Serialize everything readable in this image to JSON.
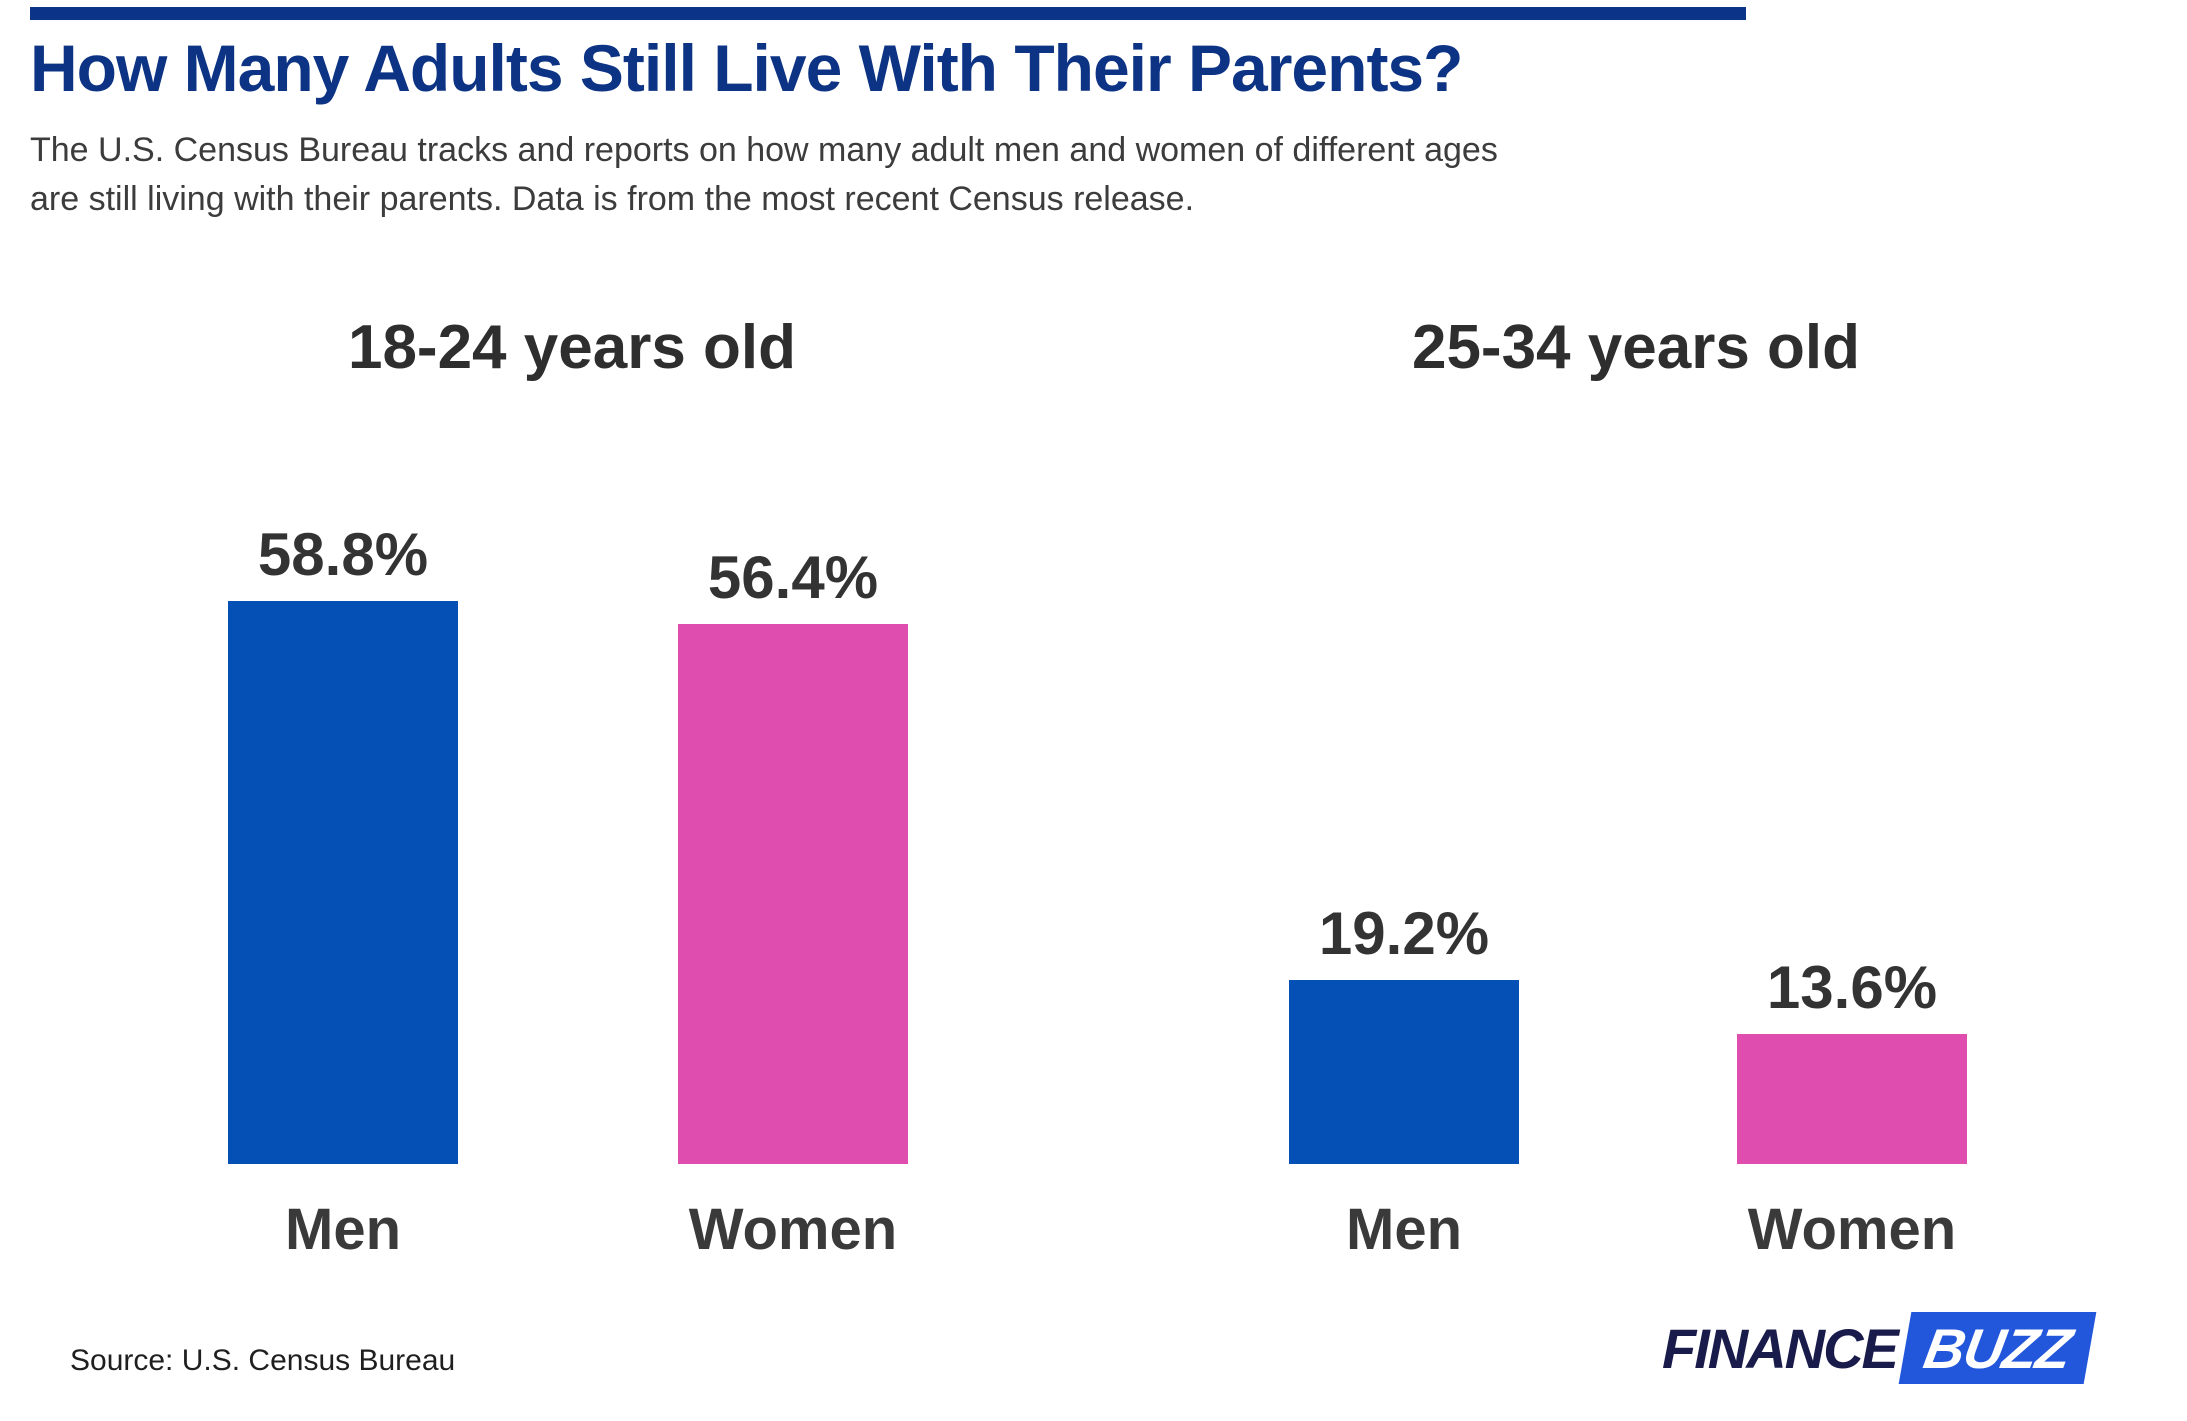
{
  "header": {
    "title": "How Many Adults Still Live With Their Parents?",
    "subtitle_line1": "The U.S. Census Bureau tracks and reports on how many adult men and women of different ages",
    "subtitle_line2": "are still living with their parents. Data is from the most recent Census release."
  },
  "theme": {
    "accent_bar": "#0b3488",
    "title_color": "#0d3384",
    "heading_text": "#2e2e2e",
    "value_text": "#333333",
    "subtitle_text": "#3c3c3c"
  },
  "chart_data": {
    "type": "grouped_bar",
    "unit": "%",
    "series": [
      "Men",
      "Women"
    ],
    "series_colors": {
      "men": "#0450b4",
      "women": "#df4daf"
    },
    "groups": [
      {
        "title": "18-24 years old",
        "categories": [
          "Men",
          "Women"
        ],
        "series_keys": [
          "men",
          "women"
        ],
        "values": [
          58.8,
          56.4
        ],
        "labels": [
          "58.8%",
          "56.4%"
        ]
      },
      {
        "title": "25-34 years old",
        "categories": [
          "Men",
          "Women"
        ],
        "series_keys": [
          "men",
          "women"
        ],
        "values": [
          19.2,
          13.6
        ],
        "labels": [
          "19.2%",
          "13.6%"
        ]
      }
    ],
    "value_label_position": "above-bar",
    "axes": "none",
    "grid": false,
    "legend": "none"
  },
  "footer": {
    "source": "Source: U.S. Census Bureau",
    "logo": {
      "part1": "FINANCE",
      "part2": "BUZZ",
      "part1_color": "#191b4a",
      "box_color": "#2257dc",
      "part2_color": "#ffffff"
    }
  }
}
